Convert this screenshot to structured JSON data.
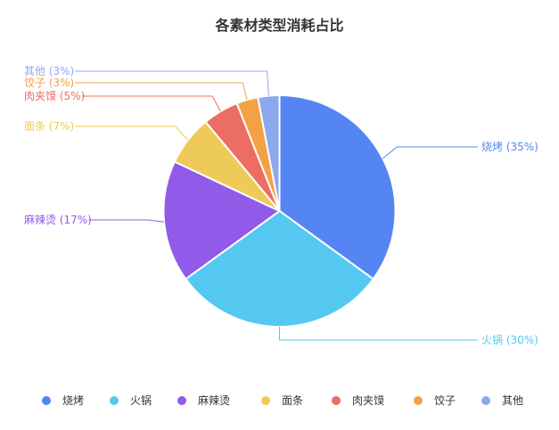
{
  "chart_data": {
    "type": "pie",
    "title": "各素材类型消耗占比",
    "legend_position": "bottom",
    "series": [
      {
        "name": "烧烤",
        "value": 35,
        "label": "烧烤 (35%)",
        "color": "#5585f2"
      },
      {
        "name": "火锅",
        "value": 30,
        "label": "火锅 (30%)",
        "color": "#55c8f2"
      },
      {
        "name": "麻辣烫",
        "value": 17,
        "label": "麻辣烫 (17%)",
        "color": "#915ae8"
      },
      {
        "name": "面条",
        "value": 7,
        "label": "面条 (7%)",
        "color": "#eecb58"
      },
      {
        "name": "肉夹馍",
        "value": 5,
        "label": "肉夹馍 (5%)",
        "color": "#ec6d63"
      },
      {
        "name": "饺子",
        "value": 3,
        "label": "饺子 (3%)",
        "color": "#f3a145"
      },
      {
        "name": "其他",
        "value": 3,
        "label": "其他 (3%)",
        "color": "#8ca9f0"
      }
    ]
  }
}
